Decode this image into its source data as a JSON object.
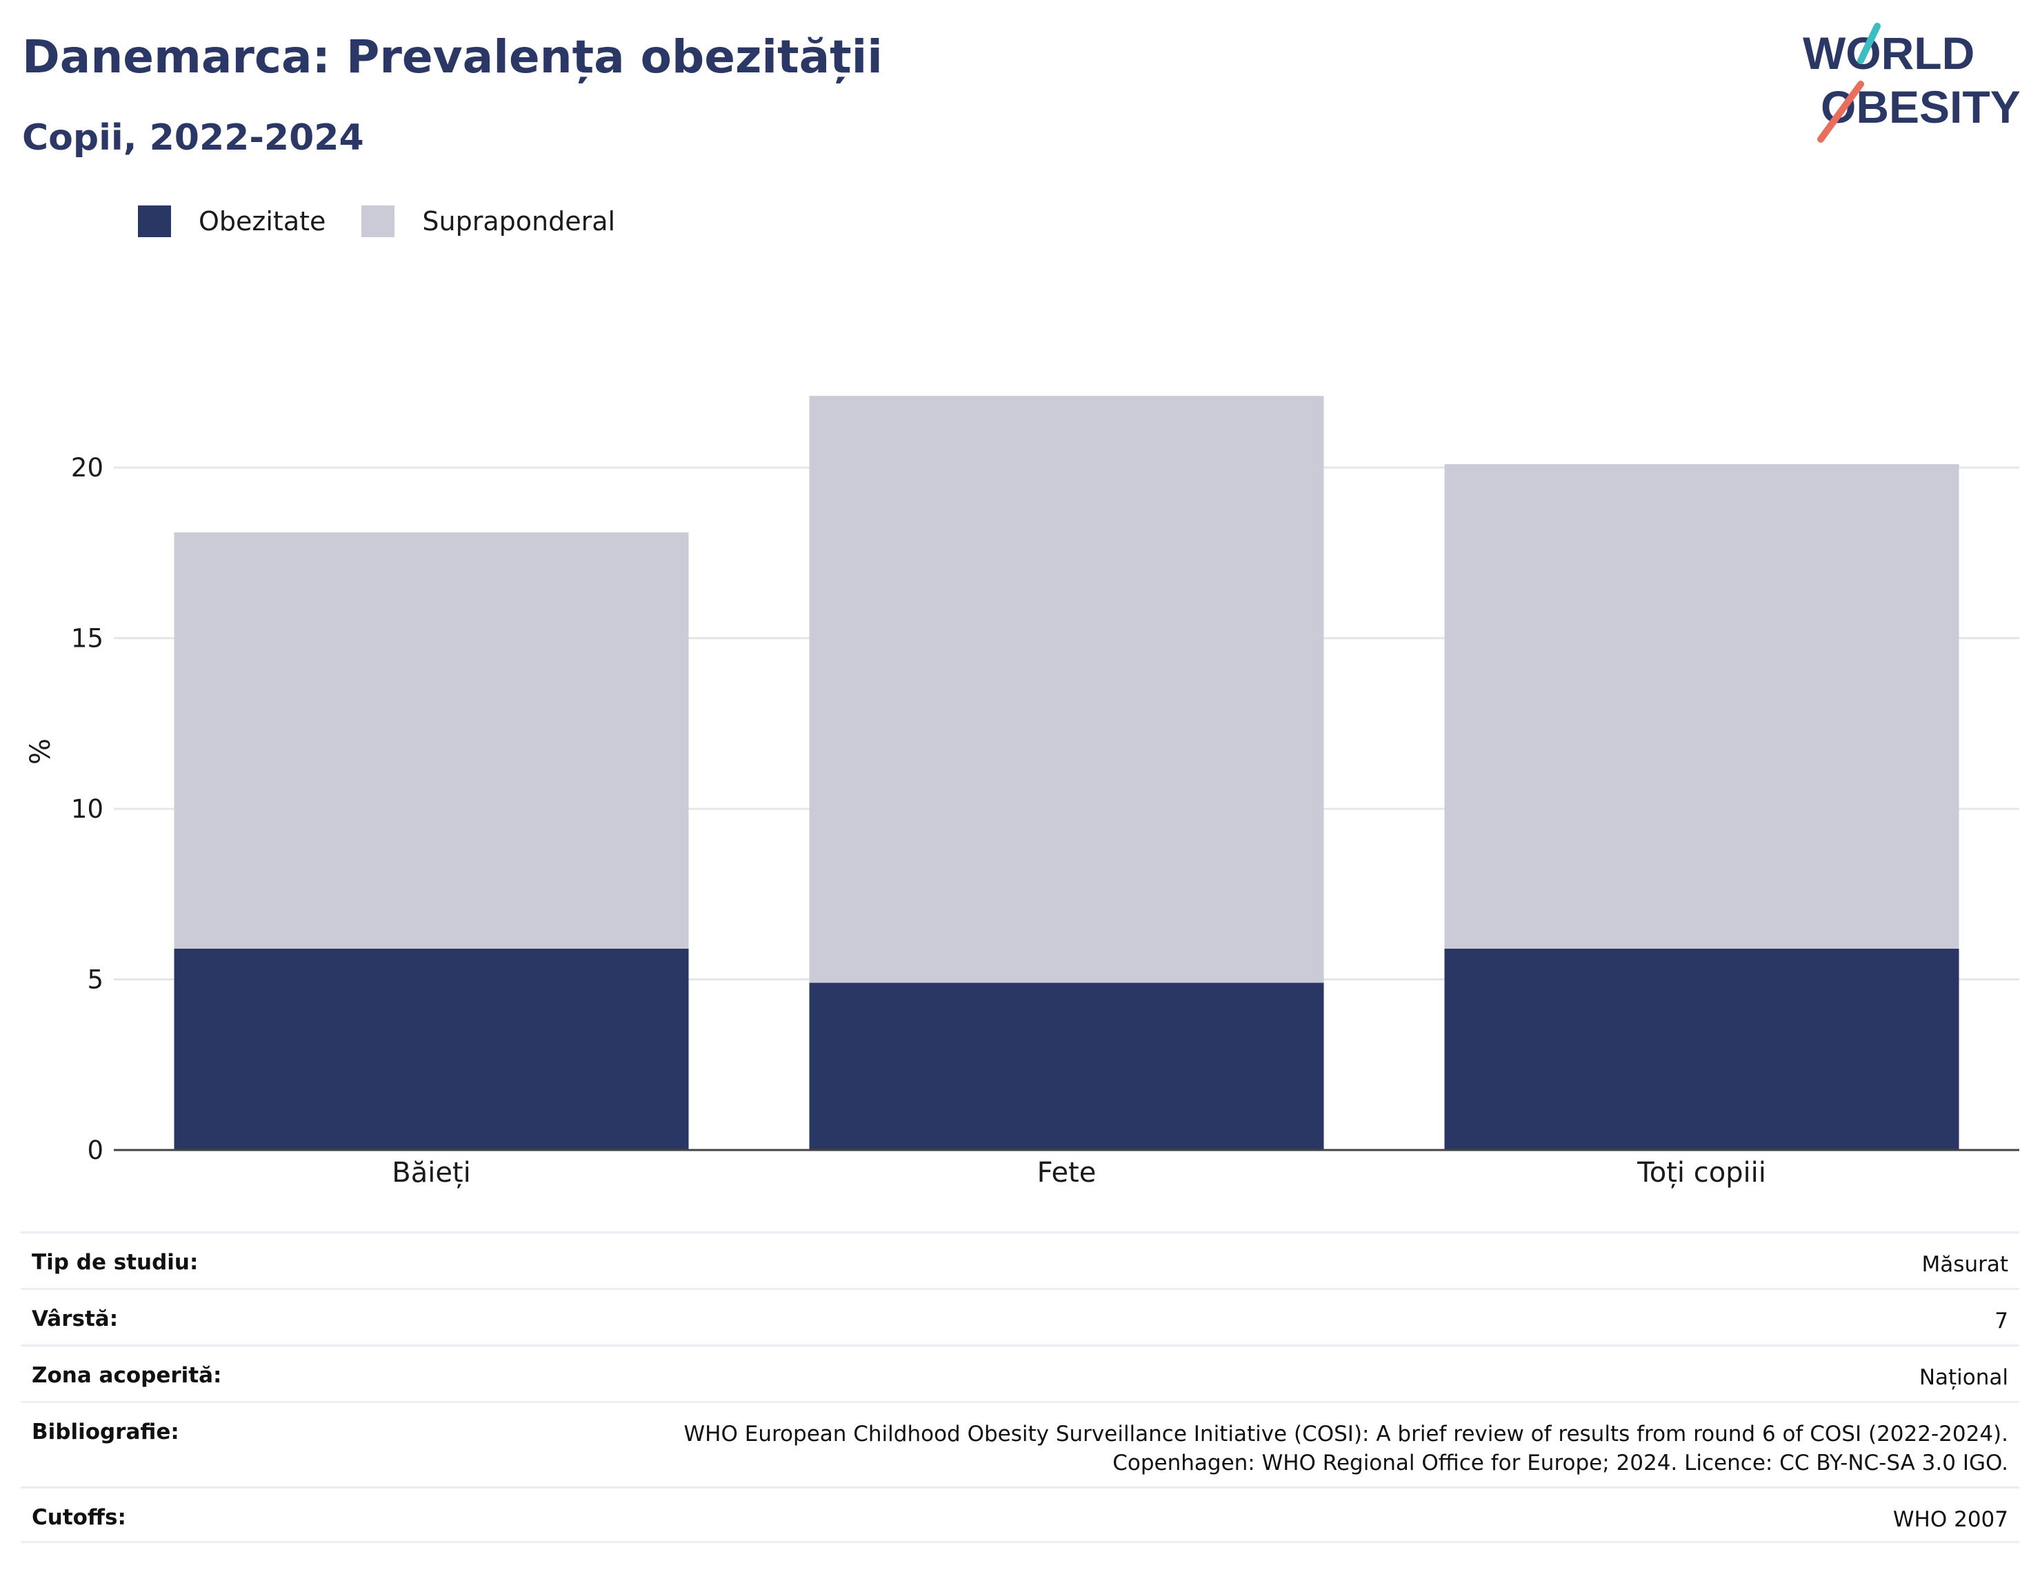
{
  "header": {
    "title": "Danemarca: Prevalența obezității",
    "subtitle": "Copii, 2022-2024"
  },
  "logo": {
    "line1": "WORLD",
    "line2": "OBESITY"
  },
  "colors": {
    "obesity": "#2a3664",
    "overweight": "#cacbd7",
    "title": "#2b3764",
    "logo_teal": "#3dbdc0",
    "logo_coral": "#e96e5b"
  },
  "chart_data": {
    "type": "bar",
    "stacked": true,
    "categories": [
      "Băieți",
      "Fete",
      "Toți copiii"
    ],
    "series": [
      {
        "name": "Obezitate",
        "values": [
          5.9,
          4.9,
          5.9
        ]
      },
      {
        "name": "Supraponderal",
        "values": [
          12.2,
          17.2,
          14.2
        ]
      }
    ],
    "ylabel": "%",
    "ylim": [
      0,
      23.6
    ],
    "yticks": [
      0,
      5,
      10,
      15,
      20
    ],
    "grid": true,
    "legend": "top-left"
  },
  "info": [
    {
      "key": "Tip de studiu:",
      "value": "Măsurat"
    },
    {
      "key": "Vârstă:",
      "value": "7"
    },
    {
      "key": "Zona acoperită:",
      "value": "Național"
    },
    {
      "key": "Bibliografie:",
      "value_lines": [
        "WHO European Childhood Obesity Surveillance Initiative (COSI): A brief review of results from round 6 of COSI (2022-2024).",
        "Copenhagen: WHO Regional Office for Europe; 2024. Licence: CC BY-NC-SA 3.0 IGO."
      ]
    },
    {
      "key": "Cutoffs:",
      "value": "WHO 2007"
    }
  ]
}
